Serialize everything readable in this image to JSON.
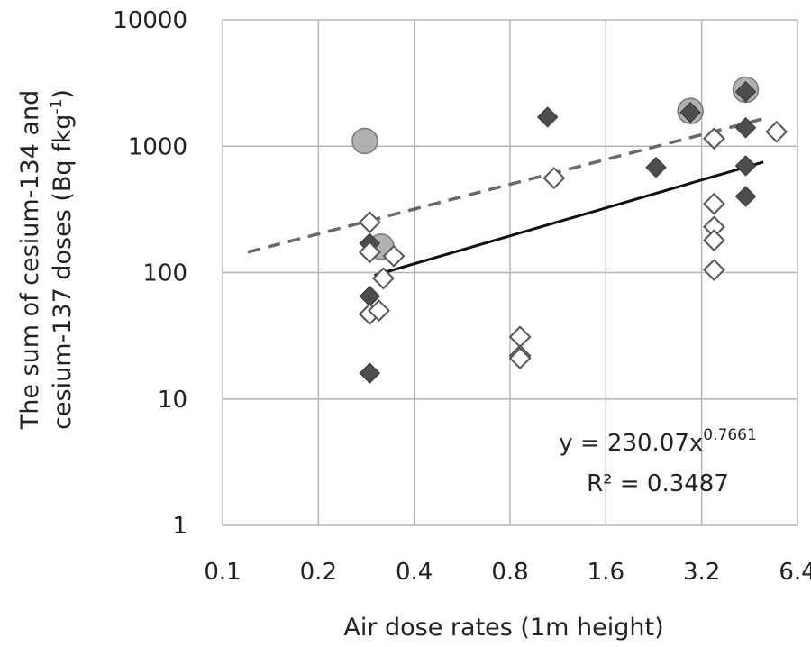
{
  "chart_data": {
    "type": "scatter",
    "x_scale": "log2",
    "y_scale": "log10",
    "xlabel": "Air dose rates (1m height)",
    "ylabel_line1": "The sum of cesium-134 and",
    "ylabel_line2": "cesium-137 doses (Bq fkg",
    "ylabel_sup": "-1",
    "ylabel_end": ")",
    "x_ticks": [
      "0.1",
      "0.2",
      "0.4",
      "0.8",
      "1.6",
      "3.2",
      "6.4"
    ],
    "x_tick_values": [
      0.1,
      0.2,
      0.4,
      0.8,
      1.6,
      3.2,
      6.4
    ],
    "y_ticks": [
      "1",
      "10",
      "100",
      "1000",
      "10000"
    ],
    "y_tick_values": [
      1,
      10,
      100,
      1000,
      10000
    ],
    "xlim": [
      0.1,
      6.4
    ],
    "ylim": [
      1,
      10000
    ],
    "grid": true,
    "equation_main": "y = 230.07x",
    "equation_exp": "0.7661",
    "r2_label": "R² = 0.3487",
    "colors": {
      "filled": "#4d4d4d",
      "open_stroke": "#555555",
      "circle_fill": "#a8a8a8",
      "circle_stroke": "#777777",
      "dashed": "#6a6a6a",
      "solid": "#111111",
      "grid": "#b5b5b5"
    },
    "series": [
      {
        "marker": "filled-diamond",
        "points": [
          [
            0.29,
            170
          ],
          [
            0.29,
            65
          ],
          [
            0.29,
            16
          ],
          [
            1.05,
            1700
          ],
          [
            2.3,
            680
          ],
          [
            2.95,
            1850
          ],
          [
            4.4,
            2700
          ],
          [
            4.4,
            1400
          ],
          [
            4.4,
            700
          ],
          [
            4.4,
            400
          ]
        ]
      },
      {
        "marker": "open-diamond",
        "points": [
          [
            0.29,
            250
          ],
          [
            0.29,
            145
          ],
          [
            0.29,
            47
          ],
          [
            0.31,
            50
          ],
          [
            0.32,
            90
          ],
          [
            0.345,
            135
          ],
          [
            0.86,
            31
          ],
          [
            0.86,
            22
          ],
          [
            0.86,
            21
          ],
          [
            1.1,
            560
          ],
          [
            3.5,
            1150
          ],
          [
            3.5,
            350
          ],
          [
            3.5,
            230
          ],
          [
            3.5,
            180
          ],
          [
            3.5,
            105
          ],
          [
            5.5,
            1300
          ]
        ]
      },
      {
        "marker": "circle",
        "points": [
          [
            0.28,
            1100
          ],
          [
            0.315,
            160
          ],
          [
            2.95,
            1900
          ],
          [
            4.4,
            2800
          ]
        ]
      }
    ],
    "trend_lines": [
      {
        "style": "dashed",
        "from": [
          0.12,
          145
        ],
        "to": [
          5.0,
          1650
        ]
      },
      {
        "style": "solid",
        "from": [
          0.3,
          95
        ],
        "to": [
          5.0,
          750
        ]
      }
    ]
  }
}
